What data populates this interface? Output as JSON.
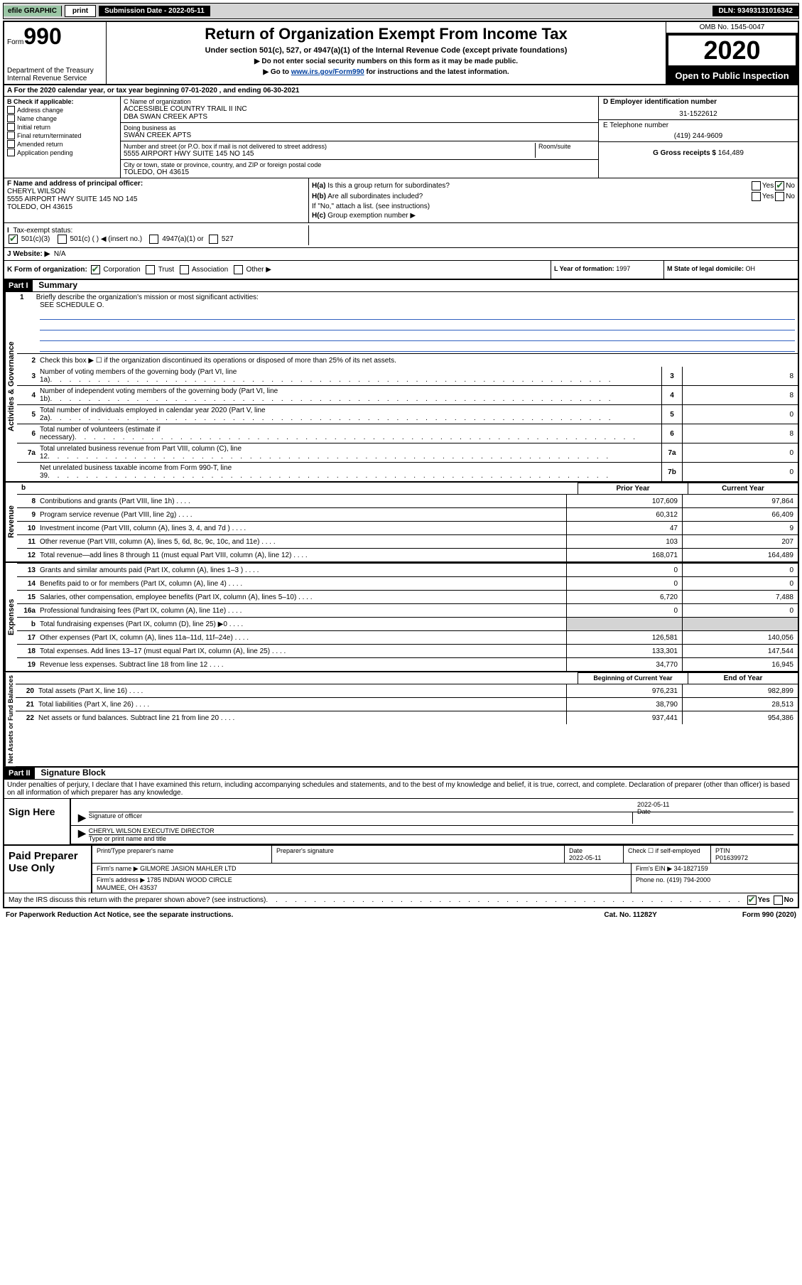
{
  "topbar": {
    "efile": "efile",
    "graphic": "GRAPHIC",
    "print": "print",
    "submission": "Submission Date - 2022-05-11",
    "dln": "DLN: 93493131016342"
  },
  "header": {
    "form_prefix": "Form",
    "form_num": "990",
    "dept": "Department of the Treasury\nInternal Revenue Service",
    "title": "Return of Organization Exempt From Income Tax",
    "subtitle": "Under section 501(c), 527, or 4947(a)(1) of the Internal Revenue Code (except private foundations)",
    "note1": "▶ Do not enter social security numbers on this form as it may be made public.",
    "note2_pre": "▶ Go to ",
    "note2_link": "www.irs.gov/Form990",
    "note2_post": " for instructions and the latest information.",
    "omb": "OMB No. 1545-0047",
    "year": "2020",
    "open": "Open to Public Inspection"
  },
  "yearline": "A For the 2020 calendar year, or tax year beginning 07-01-2020     , and ending 06-30-2021",
  "b": {
    "label": "B Check if applicable:",
    "opts": [
      "Address change",
      "Name change",
      "Initial return",
      "Final return/terminated",
      "Amended return",
      "Application pending"
    ]
  },
  "c": {
    "name_label": "C Name of organization",
    "name": "ACCESSIBLE COUNTRY TRAIL II INC\nDBA SWAN CREEK APTS",
    "dba_label": "Doing business as",
    "dba": "SWAN CREEK APTS",
    "street_label": "Number and street (or P.O. box if mail is not delivered to street address)",
    "room_label": "Room/suite",
    "street": "5555 AIRPORT HWY SUITE 145 NO 145",
    "city_label": "City or town, state or province, country, and ZIP or foreign postal code",
    "city": "TOLEDO, OH  43615"
  },
  "d": {
    "ein_label": "D Employer identification number",
    "ein": "31-1522612",
    "tel_label": "E Telephone number",
    "tel": "(419) 244-9609",
    "gross_label": "G Gross receipts $",
    "gross": "164,489"
  },
  "f": {
    "label": "F Name and address of principal officer:",
    "name": "CHERYL WILSON",
    "addr1": "5555 AIRPORT HWY SUITE 145 NO 145",
    "addr2": "TOLEDO, OH  43615"
  },
  "h": {
    "a_label": "H(a)  Is this a group return for subordinates?",
    "b_label": "H(b)  Are all subordinates included?",
    "note": "If \"No,\" attach a list. (see instructions)",
    "c_label": "H(c)  Group exemption number ▶"
  },
  "i": {
    "label": "I  Tax-exempt status:",
    "opt1": "501(c)(3)",
    "opt2": "501(c) (   ) ◀ (insert no.)",
    "opt3": "4947(a)(1) or",
    "opt4": "527"
  },
  "j": {
    "label": "J  Website: ▶",
    "val": "N/A"
  },
  "k": {
    "label": "K Form of organization:",
    "opts": [
      "Corporation",
      "Trust",
      "Association",
      "Other ▶"
    ]
  },
  "l": {
    "label": "L Year of formation:",
    "val": "1997"
  },
  "m": {
    "label": "M State of legal domicile:",
    "val": "OH"
  },
  "partI": {
    "header": "Part I",
    "title": "Summary",
    "mission_num": "1",
    "mission_label": "Briefly describe the organization's mission or most significant activities:",
    "mission_val": "SEE SCHEDULE O.",
    "line2": "Check this box ▶ ☐  if the organization discontinued its operations or disposed of more than 25% of its net assets.",
    "lines_single": [
      {
        "n": "3",
        "d": "Number of voting members of the governing body (Part VI, line 1a)",
        "box": "3",
        "v": "8"
      },
      {
        "n": "4",
        "d": "Number of independent voting members of the governing body (Part VI, line 1b)",
        "box": "4",
        "v": "8"
      },
      {
        "n": "5",
        "d": "Total number of individuals employed in calendar year 2020 (Part V, line 2a)",
        "box": "5",
        "v": "0"
      },
      {
        "n": "6",
        "d": "Total number of volunteers (estimate if necessary)",
        "box": "6",
        "v": "8"
      },
      {
        "n": "7a",
        "d": "Total unrelated business revenue from Part VIII, column (C), line 12",
        "box": "7a",
        "v": "0"
      },
      {
        "n": "",
        "d": "Net unrelated business taxable income from Form 990-T, line 39",
        "box": "7b",
        "v": "0"
      }
    ],
    "col_headers": {
      "b_spacer": "b",
      "prior": "Prior Year",
      "current": "Current Year"
    },
    "revenue": [
      {
        "n": "8",
        "d": "Contributions and grants (Part VIII, line 1h)",
        "c1": "107,609",
        "c2": "97,864"
      },
      {
        "n": "9",
        "d": "Program service revenue (Part VIII, line 2g)",
        "c1": "60,312",
        "c2": "66,409"
      },
      {
        "n": "10",
        "d": "Investment income (Part VIII, column (A), lines 3, 4, and 7d )",
        "c1": "47",
        "c2": "9"
      },
      {
        "n": "11",
        "d": "Other revenue (Part VIII, column (A), lines 5, 6d, 8c, 9c, 10c, and 11e)",
        "c1": "103",
        "c2": "207"
      },
      {
        "n": "12",
        "d": "Total revenue—add lines 8 through 11 (must equal Part VIII, column (A), line 12)",
        "c1": "168,071",
        "c2": "164,489"
      }
    ],
    "expenses": [
      {
        "n": "13",
        "d": "Grants and similar amounts paid (Part IX, column (A), lines 1–3 )",
        "c1": "0",
        "c2": "0"
      },
      {
        "n": "14",
        "d": "Benefits paid to or for members (Part IX, column (A), line 4)",
        "c1": "0",
        "c2": "0"
      },
      {
        "n": "15",
        "d": "Salaries, other compensation, employee benefits (Part IX, column (A), lines 5–10)",
        "c1": "6,720",
        "c2": "7,488"
      },
      {
        "n": "16a",
        "d": "Professional fundraising fees (Part IX, column (A), line 11e)",
        "c1": "0",
        "c2": "0"
      },
      {
        "n": "b",
        "d": "Total fundraising expenses (Part IX, column (D), line 25) ▶0",
        "c1": "",
        "c2": "",
        "shaded": true
      },
      {
        "n": "17",
        "d": "Other expenses (Part IX, column (A), lines 11a–11d, 11f–24e)",
        "c1": "126,581",
        "c2": "140,056"
      },
      {
        "n": "18",
        "d": "Total expenses. Add lines 13–17 (must equal Part IX, column (A), line 25)",
        "c1": "133,301",
        "c2": "147,544"
      },
      {
        "n": "19",
        "d": "Revenue less expenses. Subtract line 18 from line 12",
        "c1": "34,770",
        "c2": "16,945"
      }
    ],
    "net_headers": {
      "prior": "Beginning of Current Year",
      "current": "End of Year"
    },
    "net": [
      {
        "n": "20",
        "d": "Total assets (Part X, line 16)",
        "c1": "976,231",
        "c2": "982,899"
      },
      {
        "n": "21",
        "d": "Total liabilities (Part X, line 26)",
        "c1": "38,790",
        "c2": "28,513"
      },
      {
        "n": "22",
        "d": "Net assets or fund balances. Subtract line 21 from line 20",
        "c1": "937,441",
        "c2": "954,386"
      }
    ],
    "sides": {
      "gov": "Activities & Governance",
      "rev": "Revenue",
      "exp": "Expenses",
      "net": "Net Assets or Fund Balances"
    }
  },
  "partII": {
    "header": "Part II",
    "title": "Signature Block",
    "penalty": "Under penalties of perjury, I declare that I have examined this return, including accompanying schedules and statements, and to the best of my knowledge and belief, it is true, correct, and complete. Declaration of preparer (other than officer) is based on all information of which preparer has any knowledge."
  },
  "sign": {
    "here": "Sign Here",
    "sig_label": "Signature of officer",
    "date_label": "Date",
    "date": "2022-05-11",
    "name": "CHERYL WILSON  EXECUTIVE DIRECTOR",
    "name_label": "Type or print name and title"
  },
  "paid": {
    "label": "Paid Preparer Use Only",
    "h1": "Print/Type preparer's name",
    "h2": "Preparer's signature",
    "h3": "Date",
    "h3v": "2022-05-11",
    "h4": "Check ☐ if self-employed",
    "h5": "PTIN",
    "h5v": "P01639972",
    "firm_label": "Firm's name     ▶",
    "firm": "GILMORE JASION MAHLER LTD",
    "ein_label": "Firm's EIN ▶",
    "ein": "34-1827159",
    "addr_label": "Firm's address ▶",
    "addr": "1785 INDIAN WOOD CIRCLE\nMAUMEE, OH  43537",
    "phone_label": "Phone no.",
    "phone": "(419) 794-2000"
  },
  "discuss": "May the IRS discuss this return with the preparer shown above? (see instructions)",
  "footer": {
    "left": "For Paperwork Reduction Act Notice, see the separate instructions.",
    "mid": "Cat. No. 11282Y",
    "right": "Form 990 (2020)"
  }
}
